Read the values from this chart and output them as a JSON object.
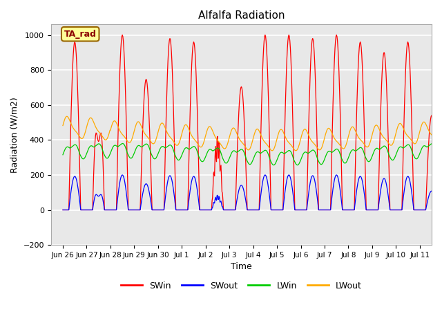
{
  "title": "Alfalfa Radiation",
  "ylabel": "Radiation (W/m2)",
  "xlabel": "Time",
  "ylim": [
    -200,
    1060
  ],
  "yticks": [
    -200,
    0,
    200,
    400,
    600,
    800,
    1000
  ],
  "xtick_labels": [
    "Jun 26",
    "Jun 27",
    "Jun 28",
    "Jun 29",
    "Jun 30",
    "Jul 1",
    "Jul 2",
    "Jul 3",
    "Jul 4",
    "Jul 5",
    "Jul 6",
    "Jul 7",
    "Jul 8",
    "Jul 9",
    "Jul 10",
    "Jul 11"
  ],
  "colors": {
    "SWin": "#ff0000",
    "SWout": "#0000ff",
    "LWin": "#00cc00",
    "LWout": "#ffaa00"
  },
  "box_label": "TA_rad",
  "box_facecolor": "#ffff99",
  "box_edgecolor": "#996600",
  "plot_facecolor": "#e8e8e8",
  "fig_facecolor": "#ffffff"
}
